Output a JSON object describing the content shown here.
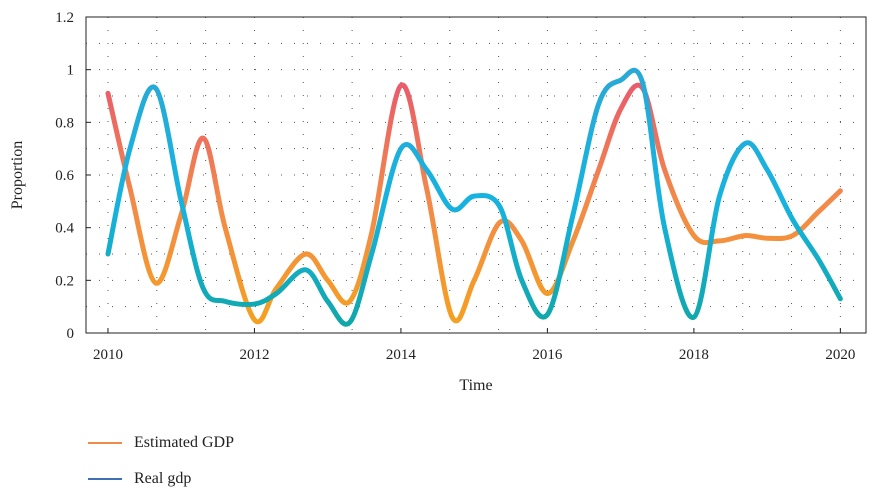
{
  "chart_data": {
    "type": "line",
    "xlabel": "Time",
    "ylabel": "Proportion",
    "xlim": [
      2009.7,
      2020.35
    ],
    "ylim": [
      0,
      1.2
    ],
    "x_ticks": [
      "2010",
      "2012",
      "2014",
      "2016",
      "2018",
      "2020"
    ],
    "y_ticks": [
      "0",
      "0.2",
      "0.4",
      "0.6",
      "0.8",
      "1",
      "1.2"
    ],
    "grid": "dotted",
    "legend_position": "bottom-left",
    "series": [
      {
        "name": "Estimated GDP",
        "color": "#f08a4b",
        "gradient": [
          "#e8566f",
          "#f28a4a",
          "#f5a21c"
        ],
        "x": [
          2010.0,
          2010.3,
          2010.65,
          2011.0,
          2011.3,
          2011.6,
          2012.0,
          2012.3,
          2012.7,
          2013.0,
          2013.3,
          2013.6,
          2014.0,
          2014.35,
          2014.7,
          2015.0,
          2015.35,
          2015.65,
          2016.0,
          2016.35,
          2016.7,
          2017.0,
          2017.3,
          2017.6,
          2018.0,
          2018.35,
          2018.7,
          2019.0,
          2019.35,
          2019.7,
          2020.0
        ],
        "y": [
          0.91,
          0.55,
          0.19,
          0.45,
          0.74,
          0.4,
          0.05,
          0.17,
          0.3,
          0.2,
          0.12,
          0.38,
          0.94,
          0.55,
          0.06,
          0.2,
          0.42,
          0.35,
          0.15,
          0.35,
          0.62,
          0.85,
          0.93,
          0.62,
          0.37,
          0.35,
          0.37,
          0.36,
          0.37,
          0.46,
          0.54
        ]
      },
      {
        "name": "Real gdp",
        "color": "#3f6fb5",
        "gradient": [
          "#2aa9d6",
          "#16b3e0",
          "#10a6a6"
        ],
        "x": [
          2010.0,
          2010.3,
          2010.65,
          2011.0,
          2011.3,
          2011.6,
          2012.0,
          2012.3,
          2012.7,
          2013.0,
          2013.3,
          2013.6,
          2014.0,
          2014.35,
          2014.7,
          2015.0,
          2015.35,
          2015.65,
          2016.0,
          2016.35,
          2016.7,
          2017.0,
          2017.3,
          2017.6,
          2018.0,
          2018.35,
          2018.7,
          2019.0,
          2019.35,
          2019.7,
          2020.0
        ],
        "y": [
          0.3,
          0.7,
          0.93,
          0.5,
          0.17,
          0.12,
          0.11,
          0.15,
          0.24,
          0.12,
          0.04,
          0.3,
          0.7,
          0.62,
          0.47,
          0.52,
          0.48,
          0.2,
          0.07,
          0.45,
          0.87,
          0.96,
          0.95,
          0.4,
          0.06,
          0.52,
          0.72,
          0.62,
          0.43,
          0.28,
          0.13
        ]
      }
    ]
  },
  "legend": [
    {
      "label": "Estimated GDP",
      "color": "#f08a4b"
    },
    {
      "label": "Real gdp",
      "color": "#3f6fb5"
    }
  ]
}
